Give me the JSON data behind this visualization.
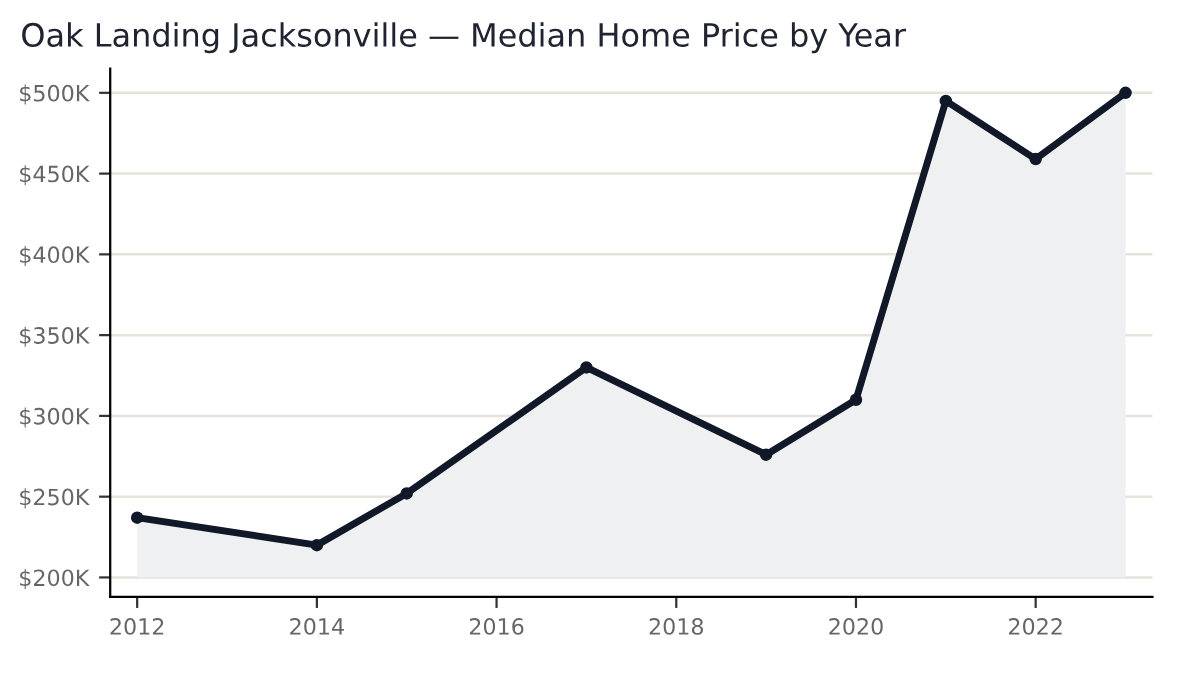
{
  "chart_data": {
    "type": "area",
    "title": "Oak Landing Jacksonville — Median Home Price by Year",
    "x": [
      2012,
      2014,
      2015,
      2017,
      2019,
      2020,
      2021,
      2022,
      2023
    ],
    "series": [
      {
        "color": "#111827",
        "values": [
          237,
          220,
          252,
          330,
          276,
          310,
          495,
          459,
          500
        ]
      }
    ],
    "xlim": [
      2011.7,
      2023.3
    ],
    "xticks": [
      2012,
      2014,
      2016,
      2018,
      2020,
      2022
    ],
    "ylim": [
      188,
      515
    ],
    "yticks": [
      {
        "value": 200,
        "label": "$200K"
      },
      {
        "value": 250,
        "label": "$250K"
      },
      {
        "value": 300,
        "label": "$300K"
      },
      {
        "value": 350,
        "label": "$350K"
      },
      {
        "value": 400,
        "label": "$400K"
      },
      {
        "value": 450,
        "label": "$450K"
      },
      {
        "value": 500,
        "label": "$500K"
      }
    ],
    "grid": "y",
    "marker": "circle",
    "line_style": "solid"
  }
}
